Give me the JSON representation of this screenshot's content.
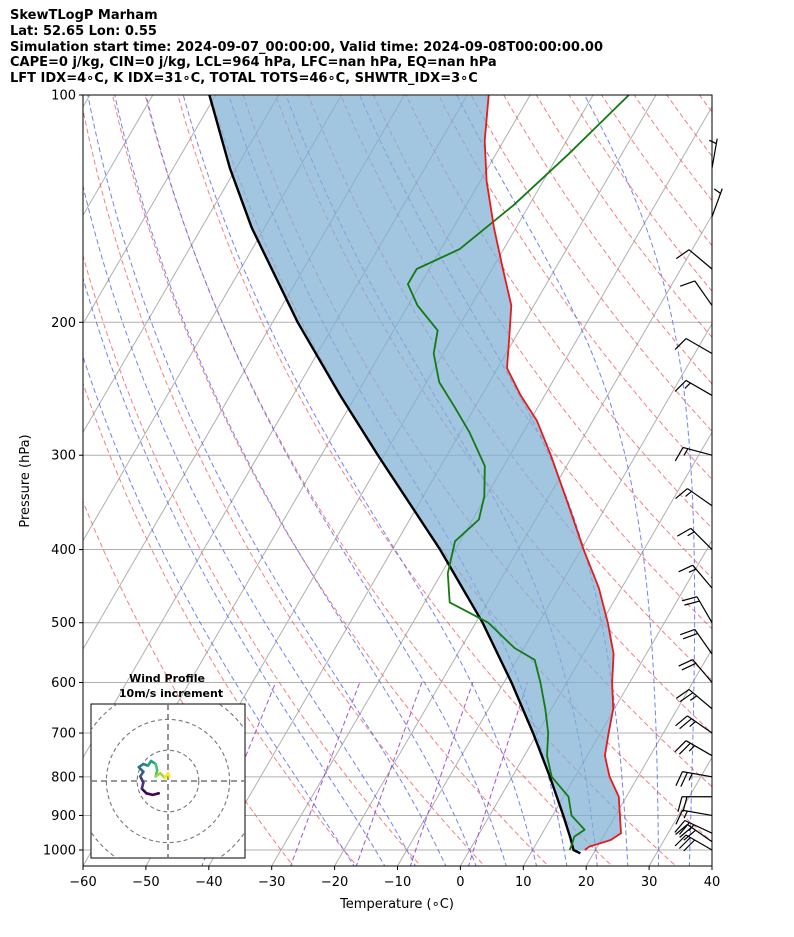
{
  "header": {
    "line1": "SkewTLogP Marham",
    "line2": "Lat: 52.65   Lon: 0.55",
    "line3": "Simulation start time: 2024-09-07_00:00:00, Valid time: 2024-09-08T00:00:00.00",
    "line4": "CAPE=0 j/kg, CIN=0 j/kg, LCL=964 hPa, LFC=nan hPa, EQ=nan hPa",
    "line5": "LFT IDX=4∘C, K IDX=31∘C, TOTAL TOTS=46∘C, SHWTR_IDX=3∘C"
  },
  "chart_data": {
    "type": "skewt-logp",
    "title": "SkewTLogP Marham",
    "xlabel": "Temperature (∘C)",
    "ylabel": "Pressure (hPa)",
    "xlim": [
      -60,
      40
    ],
    "ylim": [
      1050,
      100
    ],
    "x_ticks": [
      -60,
      -50,
      -40,
      -30,
      -20,
      -10,
      0,
      10,
      20,
      30,
      40
    ],
    "x_tick_labels": [
      "−60",
      "−50",
      "−40",
      "−30",
      "−20",
      "−10",
      "0",
      "10",
      "20",
      "30",
      "40"
    ],
    "y_ticks": [
      100,
      200,
      300,
      400,
      500,
      600,
      700,
      800,
      900,
      1000
    ],
    "y_tick_labels": [
      "100",
      "200",
      "300",
      "400",
      "500",
      "600",
      "700",
      "800",
      "900",
      "1000"
    ],
    "colors": {
      "temperature": "#e8191a",
      "dewpoint": "#137a13",
      "parcel": "#000000",
      "cape_shade": "#7fb0d4",
      "dry_adiabat": "#f06a6a",
      "moist_adiabat": "#5a6cf0",
      "mixing_ratio": "#9b3fc8",
      "isotherm": "#b0b0b0"
    },
    "temperature_profile": [
      {
        "p": 1000,
        "t": 18.3
      },
      {
        "p": 990,
        "t": 18.7
      },
      {
        "p": 970,
        "t": 21.5
      },
      {
        "p": 950,
        "t": 22.5
      },
      {
        "p": 900,
        "t": 20.7
      },
      {
        "p": 850,
        "t": 18.8
      },
      {
        "p": 800,
        "t": 15.5
      },
      {
        "p": 750,
        "t": 12.8
      },
      {
        "p": 700,
        "t": 11.3
      },
      {
        "p": 650,
        "t": 9.8
      },
      {
        "p": 600,
        "t": 7.2
      },
      {
        "p": 550,
        "t": 4.8
      },
      {
        "p": 500,
        "t": 1.0
      },
      {
        "p": 450,
        "t": -3.6
      },
      {
        "p": 400,
        "t": -9.6
      },
      {
        "p": 350,
        "t": -16.0
      },
      {
        "p": 300,
        "t": -23.5
      },
      {
        "p": 270,
        "t": -28.9
      },
      {
        "p": 250,
        "t": -33.8
      },
      {
        "p": 230,
        "t": -38.5
      },
      {
        "p": 210,
        "t": -40.9
      },
      {
        "p": 190,
        "t": -43.6
      },
      {
        "p": 170,
        "t": -48.3
      },
      {
        "p": 150,
        "t": -53.5
      },
      {
        "p": 130,
        "t": -59.0
      },
      {
        "p": 115,
        "t": -63.0
      },
      {
        "p": 100,
        "t": -66.6
      }
    ],
    "dewpoint_profile": [
      {
        "p": 1000,
        "t": 15.9
      },
      {
        "p": 980,
        "t": 15.7
      },
      {
        "p": 960,
        "t": 15.4
      },
      {
        "p": 940,
        "t": 16.4
      },
      {
        "p": 900,
        "t": 13.0
      },
      {
        "p": 850,
        "t": 10.8
      },
      {
        "p": 800,
        "t": 6.3
      },
      {
        "p": 750,
        "t": 3.6
      },
      {
        "p": 700,
        "t": 1.7
      },
      {
        "p": 650,
        "t": -1.0
      },
      {
        "p": 600,
        "t": -4.2
      },
      {
        "p": 560,
        "t": -7.2
      },
      {
        "p": 540,
        "t": -11.5
      },
      {
        "p": 500,
        "t": -18.0
      },
      {
        "p": 470,
        "t": -26.0
      },
      {
        "p": 430,
        "t": -29.0
      },
      {
        "p": 390,
        "t": -30.8
      },
      {
        "p": 365,
        "t": -29.0
      },
      {
        "p": 340,
        "t": -30.3
      },
      {
        "p": 310,
        "t": -33.0
      },
      {
        "p": 280,
        "t": -38.5
      },
      {
        "p": 260,
        "t": -43.0
      },
      {
        "p": 240,
        "t": -48.0
      },
      {
        "p": 220,
        "t": -51.5
      },
      {
        "p": 205,
        "t": -53.0
      },
      {
        "p": 190,
        "t": -58.5
      },
      {
        "p": 178,
        "t": -62.0
      },
      {
        "p": 170,
        "t": -62.0
      },
      {
        "p": 160,
        "t": -57.0
      },
      {
        "p": 140,
        "t": -52.5
      },
      {
        "p": 120,
        "t": -48.5
      },
      {
        "p": 100,
        "t": -44.3
      }
    ],
    "parcel_profile": [
      {
        "p": 1010,
        "t": 17.9
      },
      {
        "p": 1000,
        "t": 16.5
      },
      {
        "p": 964,
        "t": 14.9
      },
      {
        "p": 900,
        "t": 11.7
      },
      {
        "p": 800,
        "t": 6.0
      },
      {
        "p": 700,
        "t": -0.7
      },
      {
        "p": 600,
        "t": -8.8
      },
      {
        "p": 500,
        "t": -18.9
      },
      {
        "p": 400,
        "t": -32.4
      },
      {
        "p": 300,
        "t": -51.0
      },
      {
        "p": 250,
        "t": -62.5
      },
      {
        "p": 200,
        "t": -76.0
      },
      {
        "p": 150,
        "t": -92.0
      },
      {
        "p": 125,
        "t": -101.0
      },
      {
        "p": 100,
        "t": -111.0
      }
    ],
    "wind_barbs": [
      {
        "p": 1000,
        "speed_kt": 30,
        "dir_deg": 300
      },
      {
        "p": 975,
        "speed_kt": 30,
        "dir_deg": 305
      },
      {
        "p": 950,
        "speed_kt": 25,
        "dir_deg": 295
      },
      {
        "p": 900,
        "speed_kt": 15,
        "dir_deg": 280
      },
      {
        "p": 850,
        "speed_kt": 20,
        "dir_deg": 270
      },
      {
        "p": 800,
        "speed_kt": 25,
        "dir_deg": 280
      },
      {
        "p": 750,
        "speed_kt": 25,
        "dir_deg": 300
      },
      {
        "p": 700,
        "speed_kt": 25,
        "dir_deg": 305
      },
      {
        "p": 650,
        "speed_kt": 25,
        "dir_deg": 310
      },
      {
        "p": 600,
        "speed_kt": 20,
        "dir_deg": 320
      },
      {
        "p": 550,
        "speed_kt": 20,
        "dir_deg": 325
      },
      {
        "p": 500,
        "speed_kt": 20,
        "dir_deg": 330
      },
      {
        "p": 450,
        "speed_kt": 15,
        "dir_deg": 320
      },
      {
        "p": 400,
        "speed_kt": 15,
        "dir_deg": 315
      },
      {
        "p": 350,
        "speed_kt": 15,
        "dir_deg": 305
      },
      {
        "p": 300,
        "speed_kt": 15,
        "dir_deg": 285
      },
      {
        "p": 250,
        "speed_kt": 15,
        "dir_deg": 300
      },
      {
        "p": 220,
        "speed_kt": 10,
        "dir_deg": 300
      },
      {
        "p": 190,
        "speed_kt": 10,
        "dir_deg": 325
      },
      {
        "p": 170,
        "speed_kt": 10,
        "dir_deg": 310
      },
      {
        "p": 145,
        "speed_kt": 5,
        "dir_deg": 20
      },
      {
        "p": 125,
        "speed_kt": 5,
        "dir_deg": 10
      }
    ],
    "hodograph": {
      "title_line1": "Wind Profile",
      "title_line2": "10m/s increment",
      "ring_increment_ms": 10,
      "range_ms": 25,
      "points": [
        {
          "u": -3.0,
          "v": -4.0
        },
        {
          "u": -5.0,
          "v": -4.5
        },
        {
          "u": -7.0,
          "v": -4.0
        },
        {
          "u": -8.5,
          "v": -2.5
        },
        {
          "u": -8.0,
          "v": -0.5
        },
        {
          "u": -9.0,
          "v": 1.5
        },
        {
          "u": -8.0,
          "v": 3.0
        },
        {
          "u": -9.5,
          "v": 4.5
        },
        {
          "u": -8.0,
          "v": 5.5
        },
        {
          "u": -6.5,
          "v": 5.0
        },
        {
          "u": -5.5,
          "v": 6.5
        },
        {
          "u": -4.0,
          "v": 5.5
        },
        {
          "u": -3.5,
          "v": 3.5
        },
        {
          "u": -4.0,
          "v": 1.5
        },
        {
          "u": -2.5,
          "v": 2.5
        },
        {
          "u": -1.0,
          "v": 1.0
        },
        {
          "u": 0.0,
          "v": 2.5
        },
        {
          "u": 0.5,
          "v": 1.5
        }
      ]
    }
  }
}
